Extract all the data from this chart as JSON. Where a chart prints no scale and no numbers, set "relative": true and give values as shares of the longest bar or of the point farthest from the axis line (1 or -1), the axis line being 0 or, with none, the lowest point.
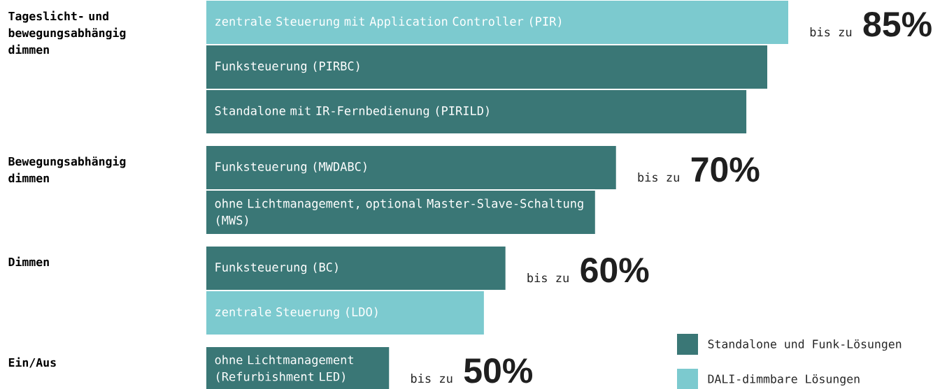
{
  "chart_data": {
    "type": "bar",
    "orientation": "horizontal",
    "relative": true,
    "categories": [
      "zentrale Steuerung mit Application Controller (PIR)",
      "Funksteuerung (PIRBC)",
      "Standalone mit IR-Fernbedienung (PIRILD)",
      "Funksteuerung (MWDABC)",
      "ohne Lichtmanagement, optional Master-Slave-Schaltung (MWS)",
      "Funksteuerung (BC)",
      "zentrale Steuerung (LDO)",
      "ohne Lichtmanagement (Refurbishment LED)"
    ],
    "series": [
      {
        "name": "Standalone und Funk-Lösungen",
        "color": "#3a7776",
        "values": [
          null,
          0.964,
          0.928,
          0.704,
          0.668,
          0.514,
          null,
          0.314
        ]
      },
      {
        "name": "DALI-dimmbare Lösungen",
        "color": "#7ccacf",
        "values": [
          1.0,
          null,
          null,
          null,
          null,
          null,
          0.477,
          null
        ]
      }
    ],
    "annotations": [
      "Tageslicht- und bewegungsabhängig dimmen",
      "bis zu",
      "85%",
      "Bewegungsabhängig dimmen",
      "bis zu",
      "70%",
      "Dimmen",
      "bis zu",
      "60%",
      "Ein/Aus",
      "bis zu",
      "50%"
    ],
    "legend": "bottom right"
  }
}
